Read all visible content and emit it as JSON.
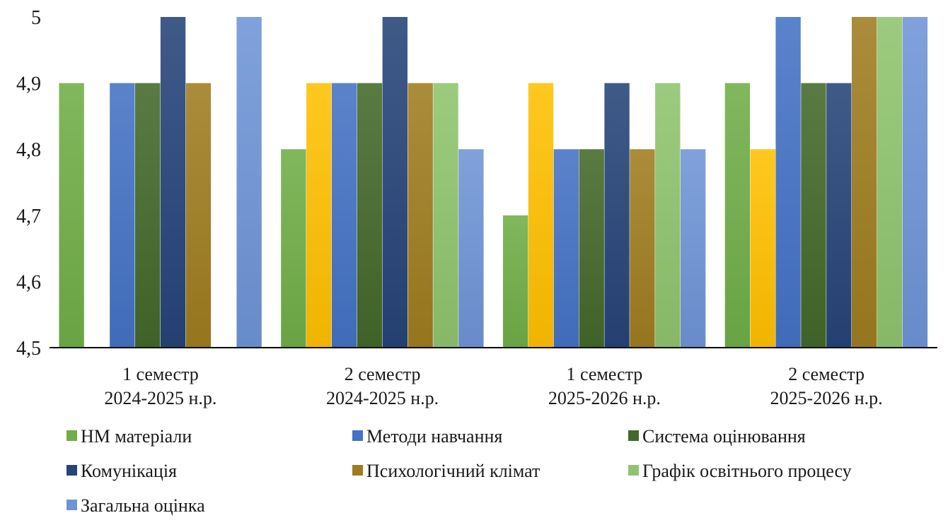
{
  "chart_data": {
    "type": "bar",
    "title": "",
    "xlabel": "",
    "ylabel": "",
    "ylim": [
      4.5,
      5.0
    ],
    "yticks": [
      "4,5",
      "4,6",
      "4,7",
      "4,8",
      "4,9",
      "5"
    ],
    "grid": false,
    "legend_position": "bottom",
    "categories": [
      [
        "1 семестр",
        "2024-2025 н.р."
      ],
      [
        "2 семестр",
        "2024-2025 н.р."
      ],
      [
        "1 семестр",
        "2025-2026 н.р."
      ],
      [
        "2 семестр",
        "2025-2026 н.р."
      ]
    ],
    "series": [
      {
        "name": "НМ матеріали",
        "color": "#70ad47",
        "values": [
          4.9,
          4.8,
          4.7,
          4.9
        ]
      },
      {
        "name": "",
        "color": "#ffc000",
        "values": [
          null,
          4.9,
          4.9,
          4.8
        ]
      },
      {
        "name": "Методи навчання",
        "color": "#4472c4",
        "values": [
          4.9,
          4.9,
          4.8,
          5.0
        ]
      },
      {
        "name": "Система оцінювання",
        "color": "#43682b",
        "values": [
          4.9,
          4.9,
          4.8,
          4.9
        ]
      },
      {
        "name": "Комунікація",
        "color": "#264478",
        "values": [
          5.0,
          5.0,
          4.9,
          4.9
        ]
      },
      {
        "name": "Психологічний клімат",
        "color": "#9e7c1f",
        "values": [
          4.9,
          4.9,
          4.8,
          5.0
        ]
      },
      {
        "name": "Графік освітнього процесу",
        "color": "#8fc46e",
        "values": [
          null,
          4.9,
          4.9,
          5.0
        ]
      },
      {
        "name": "Загальна оцінка",
        "color": "#6f94d6",
        "values": [
          5.0,
          4.8,
          4.8,
          5.0
        ]
      }
    ]
  }
}
